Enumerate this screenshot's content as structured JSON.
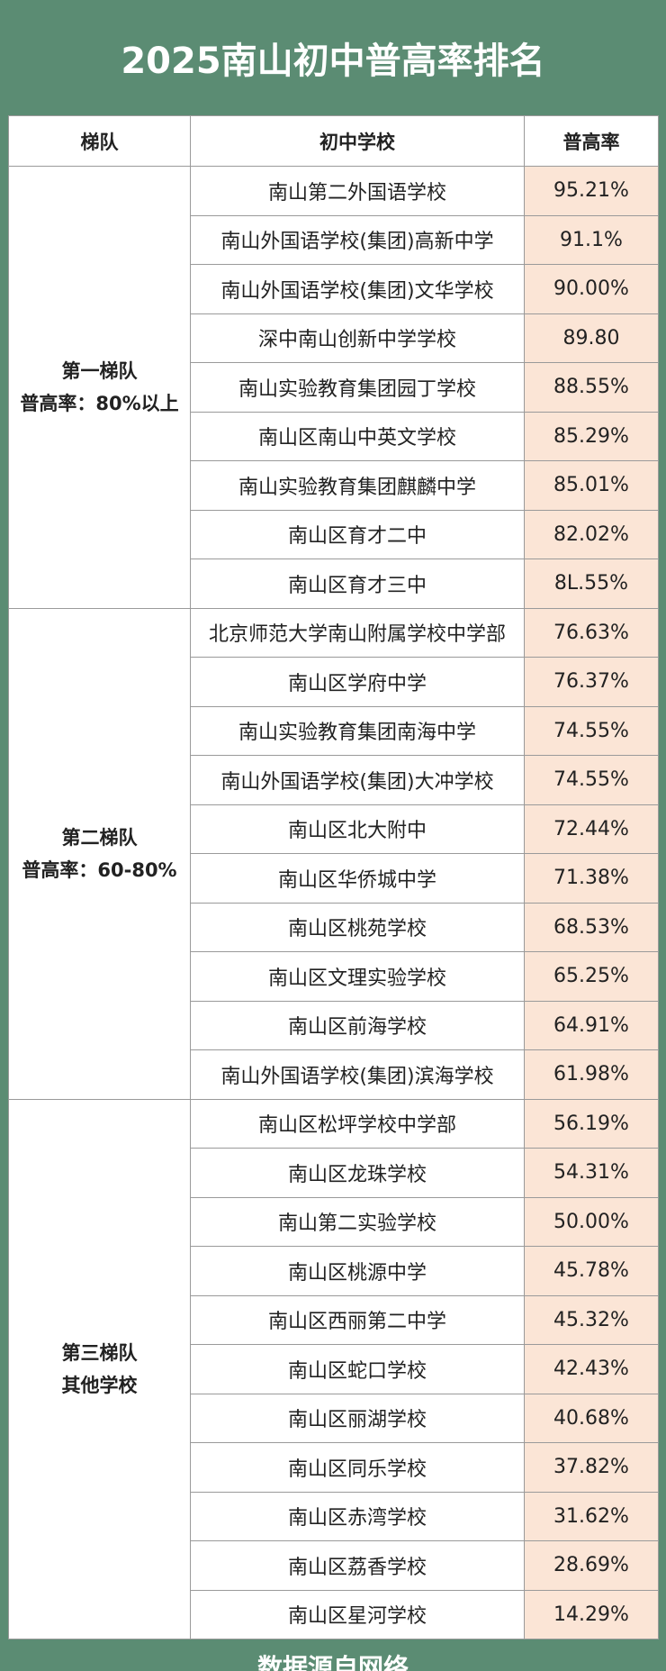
{
  "title": "2025南山初中普高率排名",
  "table": {
    "headers": [
      "梯队",
      "初中学校",
      "普高率"
    ],
    "groups": [
      {
        "tier": "第一梯队",
        "desc": "普高率：80%以上",
        "rows": [
          [
            "南山第二外国语学校",
            "95.21%"
          ],
          [
            "南山外国语学校(集团)高新中学",
            "91.1%"
          ],
          [
            "南山外国语学校(集团)文华学校",
            "90.00%"
          ],
          [
            "深中南山创新中学学校",
            "89.80"
          ],
          [
            "南山实验教育集团园丁学校",
            "88.55%"
          ],
          [
            "南山区南山中英文学校",
            "85.29%"
          ],
          [
            "南山实验教育集团麒麟中学",
            "85.01%"
          ],
          [
            "南山区育才二中",
            "82.02%"
          ],
          [
            "南山区育才三中",
            "8L.55%"
          ]
        ]
      },
      {
        "tier": "第二梯队",
        "desc": "普高率：60-80%",
        "rows": [
          [
            "北京师范大学南山附属学校中学部",
            "76.63%"
          ],
          [
            "南山区学府中学",
            "76.37%"
          ],
          [
            "南山实验教育集团南海中学",
            "74.55%"
          ],
          [
            "南山外国语学校(集团)大冲学校",
            "74.55%"
          ],
          [
            "南山区北大附中",
            "72.44%"
          ],
          [
            "南山区华侨城中学",
            "71.38%"
          ],
          [
            "南山区桃苑学校",
            "68.53%"
          ],
          [
            "南山区文理实验学校",
            "65.25%"
          ],
          [
            "南山区前海学校",
            "64.91%"
          ],
          [
            "南山外国语学校(集团)滨海学校",
            "61.98%"
          ]
        ]
      },
      {
        "tier": "第三梯队",
        "desc": "其他学校",
        "rows": [
          [
            "南山区松坪学校中学部",
            "56.19%"
          ],
          [
            "南山区龙珠学校",
            "54.31%"
          ],
          [
            "南山第二实验学校",
            "50.00%"
          ],
          [
            "南山区桃源中学",
            "45.78%"
          ],
          [
            "南山区西丽第二中学",
            "45.32%"
          ],
          [
            "南山区蛇口学校",
            "42.43%"
          ],
          [
            "南山区丽湖学校",
            "40.68%"
          ],
          [
            "南山区同乐学校",
            "37.82%"
          ],
          [
            "南山区赤湾学校",
            "31.62%"
          ],
          [
            "南山区荔香学校",
            "28.69%"
          ],
          [
            "南山区星河学校",
            "14.29%"
          ]
        ]
      }
    ]
  },
  "footer": "数据源自网络"
}
